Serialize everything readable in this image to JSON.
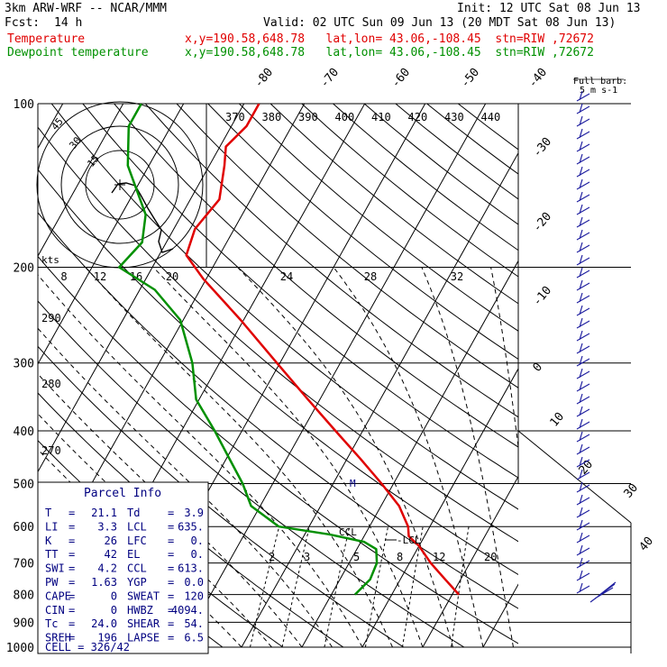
{
  "header": {
    "model": "3km ARW-WRF -- NCAR/MMM",
    "init": "Init: 12 UTC Sat 08 Jun 13",
    "fcst_label": "Fcst:",
    "fcst_value": "14 h",
    "valid": "Valid: 02 UTC Sun 09 Jun 13 (20 MDT Sat 08 Jun 13)"
  },
  "legend": [
    {
      "name": "Temperature",
      "info": "x,y=190.58,648.78   lat,lon= 43.06,-108.45  stn=RIW ,72672",
      "color": "#e00000"
    },
    {
      "name": "Dewpoint temperature",
      "info": "x,y=190.58,648.78   lat,lon= 43.06,-108.45  stn=RIW ,72672",
      "color": "#009000"
    }
  ],
  "chart_data": {
    "type": "line",
    "title": "",
    "y_axis": "pressure (hPa), log scale",
    "ylim": [
      1000,
      100
    ],
    "xlim_at_1000hPa": [
      -40,
      40
    ],
    "pressure_ticks": [
      100,
      200,
      300,
      400,
      500,
      600,
      700,
      800,
      900,
      1000
    ],
    "isotherm_labels": [
      -80,
      -70,
      -60,
      -50,
      -40,
      -30,
      -20,
      -10,
      0,
      10,
      20,
      30,
      40
    ],
    "theta_labels": [
      290,
      280,
      270
    ],
    "thetae_labels": [
      370,
      380,
      390,
      400,
      410,
      420,
      430,
      440
    ],
    "mixing_ratio_labels": [
      "2",
      "3",
      "5",
      "8",
      "12",
      "20"
    ],
    "series": [
      {
        "name": "Temperature",
        "color": "#e00000",
        "points": [
          [
            800,
            21.1
          ],
          [
            750,
            17.4
          ],
          [
            700,
            13.5
          ],
          [
            650,
            9.9
          ],
          [
            625,
            7.4
          ],
          [
            600,
            6.4
          ],
          [
            550,
            3.0
          ],
          [
            500,
            -2.0
          ],
          [
            450,
            -7.8
          ],
          [
            400,
            -14.5
          ],
          [
            350,
            -22.0
          ],
          [
            300,
            -30.5
          ],
          [
            250,
            -40.5
          ],
          [
            210,
            -50.5
          ],
          [
            190,
            -55.5
          ],
          [
            170,
            -56.5
          ],
          [
            150,
            -55.2
          ],
          [
            130,
            -57.5
          ],
          [
            120,
            -59.0
          ],
          [
            110,
            -57.5
          ],
          [
            100,
            -57.5
          ]
        ]
      },
      {
        "name": "Dewpoint temperature",
        "color": "#009000",
        "points": [
          [
            800,
            3.9
          ],
          [
            750,
            5.0
          ],
          [
            700,
            4.6
          ],
          [
            660,
            3.2
          ],
          [
            640,
            0.5
          ],
          [
            620,
            -6.0
          ],
          [
            600,
            -15.0
          ],
          [
            550,
            -21.5
          ],
          [
            500,
            -25.0
          ],
          [
            450,
            -29.5
          ],
          [
            400,
            -34.5
          ],
          [
            350,
            -40.5
          ],
          [
            300,
            -44.5
          ],
          [
            250,
            -50.5
          ],
          [
            220,
            -57.5
          ],
          [
            200,
            -65.5
          ],
          [
            180,
            -64.0
          ],
          [
            160,
            -66.0
          ],
          [
            130,
            -73.5
          ],
          [
            110,
            -77.0
          ],
          [
            100,
            -77.0
          ]
        ]
      }
    ],
    "annotations": [
      {
        "text": "LCL",
        "pressure": 635
      },
      {
        "text": "CCL",
        "pressure": 613
      }
    ]
  },
  "hodograph": {
    "units_label": "kts",
    "speed_ticks": [
      "8",
      "12",
      "16",
      "20",
      "24",
      "28",
      "32"
    ],
    "ring_labels": [
      "15",
      "30",
      "45"
    ]
  },
  "wind_barb_label": "Full barb:",
  "wind_barb_value": "5 m s-1",
  "parcel_info": {
    "title": "Parcel Info",
    "rows": [
      [
        "T",
        "21.1",
        "Td",
        "3.9"
      ],
      [
        "LI",
        "3.3",
        "LCL",
        "635."
      ],
      [
        "K",
        "26",
        "LFC",
        "0."
      ],
      [
        "TT",
        "42",
        "EL",
        "0."
      ],
      [
        "SWI",
        "4.2",
        "CCL",
        "613."
      ],
      [
        "PW",
        "1.63",
        "YGP",
        "0.0"
      ],
      [
        "CAPE",
        "0",
        "SWEAT",
        "120"
      ],
      [
        "CIN",
        "0",
        "HWBZ",
        "4094."
      ],
      [
        "Tc",
        "24.0",
        "SHEAR",
        "54."
      ],
      [
        "SREH",
        "196",
        "LAPSE",
        "6.5"
      ]
    ],
    "cell_label": "CELL",
    "cell_value": "326/42"
  }
}
